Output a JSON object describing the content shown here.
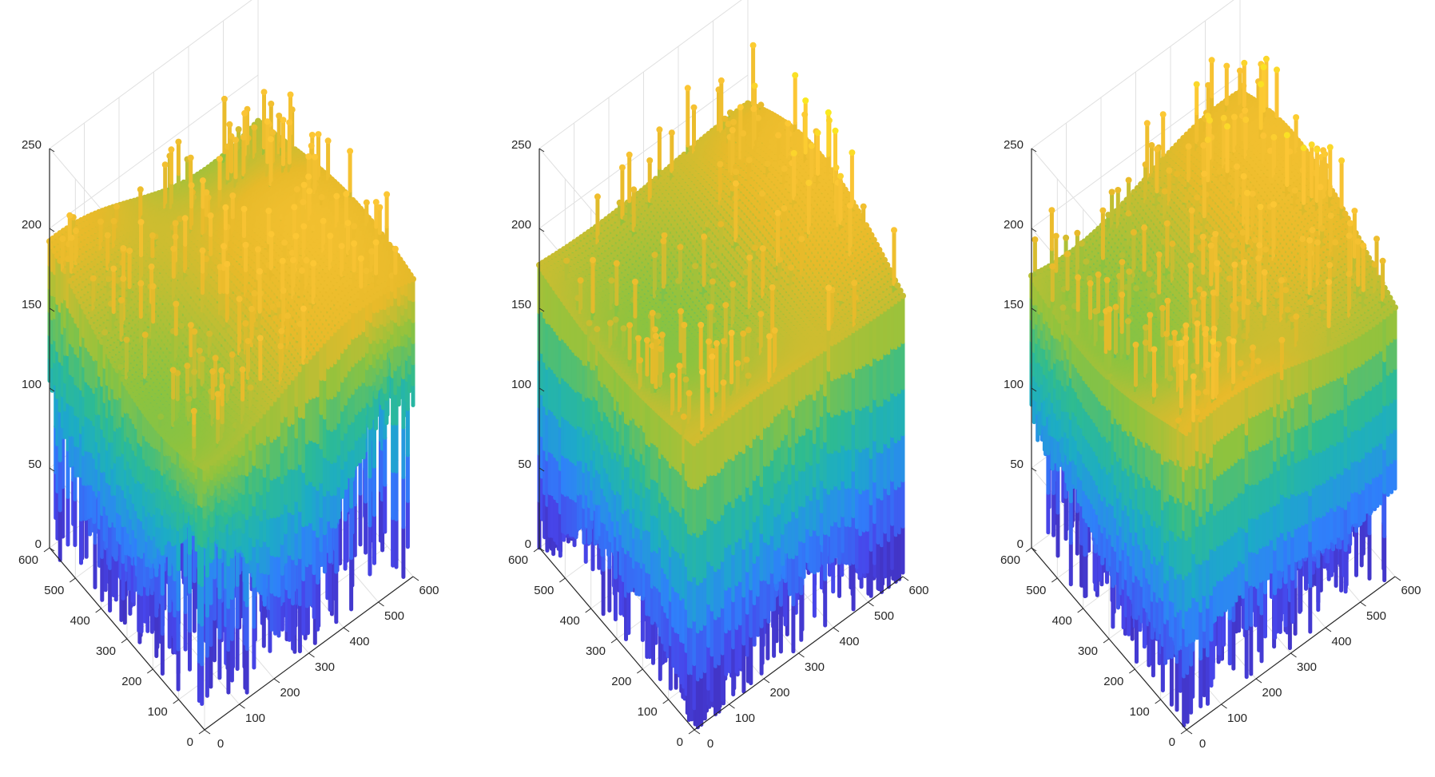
{
  "chart_data": [
    {
      "type": "surface",
      "title": "",
      "xlabel": "",
      "ylabel": "",
      "zlabel": "",
      "xlim": [
        0,
        600
      ],
      "ylim": [
        0,
        600
      ],
      "zlim": [
        0,
        250
      ],
      "xticks": [
        "0",
        "100",
        "200",
        "300",
        "400",
        "500",
        "600"
      ],
      "yticks": [
        "0",
        "100",
        "200",
        "300",
        "400",
        "500",
        "600"
      ],
      "zticks": [
        "0",
        "50",
        "100",
        "150",
        "200",
        "250"
      ],
      "grid": true,
      "colormap": "parula",
      "surface": {
        "base_level": 0,
        "peak": 220,
        "floor_mean": 85,
        "floor_depth": 85,
        "spike_density": 0.55,
        "seed": 11
      }
    },
    {
      "type": "surface",
      "title": "",
      "xlabel": "",
      "ylabel": "",
      "zlabel": "",
      "xlim": [
        0,
        600
      ],
      "ylim": [
        0,
        600
      ],
      "zlim": [
        0,
        250
      ],
      "xticks": [
        "0",
        "100",
        "200",
        "300",
        "400",
        "500",
        "600"
      ],
      "yticks": [
        "0",
        "100",
        "200",
        "300",
        "400",
        "500",
        "600"
      ],
      "zticks": [
        "0",
        "50",
        "100",
        "150",
        "200",
        "250"
      ],
      "grid": true,
      "colormap": "parula",
      "surface": {
        "base_level": 0,
        "peak": 240,
        "floor_mean": 30,
        "floor_depth": 60,
        "spike_density": 0.45,
        "seed": 23
      }
    },
    {
      "type": "surface",
      "title": "",
      "xlabel": "",
      "ylabel": "",
      "zlabel": "",
      "xlim": [
        0,
        600
      ],
      "ylim": [
        0,
        600
      ],
      "zlim": [
        0,
        250
      ],
      "xticks": [
        "0",
        "100",
        "200",
        "300",
        "400",
        "500",
        "600"
      ],
      "yticks": [
        "0",
        "100",
        "200",
        "300",
        "400",
        "500",
        "600"
      ],
      "zticks": [
        "0",
        "50",
        "100",
        "150",
        "200",
        "250"
      ],
      "grid": true,
      "colormap": "parula",
      "surface": {
        "base_level": 0,
        "peak": 235,
        "floor_mean": 55,
        "floor_depth": 70,
        "spike_density": 0.6,
        "seed": 37
      }
    }
  ],
  "colors": {
    "axis": "#262626",
    "grid": "#e0e0e0",
    "parula": [
      "#3e26a8",
      "#4746eb",
      "#2f80fa",
      "#1cacc6",
      "#2fbc8f",
      "#8ec33e",
      "#e7ba2a",
      "#fcc535",
      "#f9fb15"
    ]
  }
}
